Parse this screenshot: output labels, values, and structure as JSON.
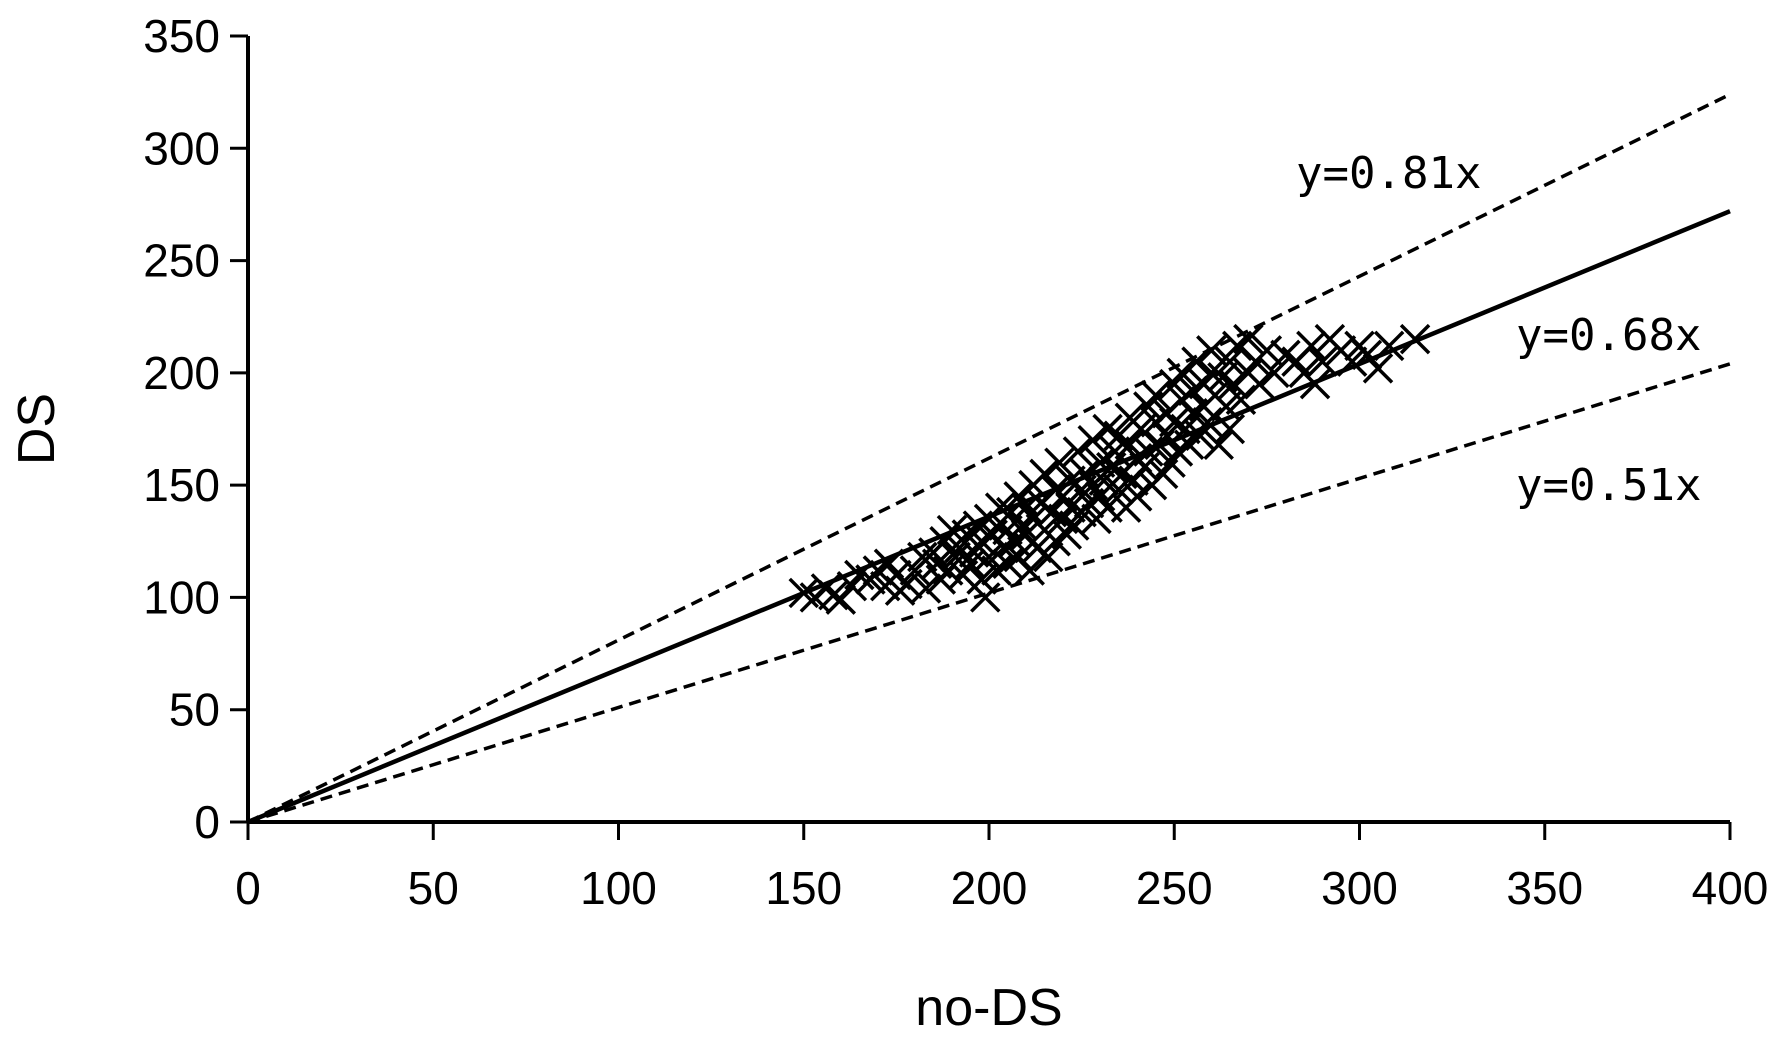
{
  "chart_data": {
    "type": "scatter",
    "title": "",
    "xlabel": "no-DS",
    "ylabel": "DS",
    "xlim": [
      0,
      400
    ],
    "ylim": [
      0,
      350
    ],
    "xticks": [
      "0",
      "50",
      "100",
      "150",
      "200",
      "250",
      "300",
      "350",
      "400"
    ],
    "yticks": [
      "0",
      "50",
      "100",
      "150",
      "200",
      "250",
      "300",
      "350"
    ],
    "grid": false,
    "legend": "none",
    "marker": "x",
    "lines": [
      {
        "slope": 0.81,
        "style": "dashed",
        "label": "y=0.81x"
      },
      {
        "slope": 0.68,
        "style": "solid",
        "label": "y=0.68x"
      },
      {
        "slope": 0.51,
        "style": "dashed",
        "label": "y=0.51x"
      }
    ],
    "points": [
      [
        150,
        102
      ],
      [
        153,
        100
      ],
      [
        156,
        104
      ],
      [
        158,
        101
      ],
      [
        160,
        99
      ],
      [
        163,
        105
      ],
      [
        165,
        110
      ],
      [
        168,
        108
      ],
      [
        170,
        112
      ],
      [
        172,
        105
      ],
      [
        173,
        115
      ],
      [
        175,
        110
      ],
      [
        176,
        103
      ],
      [
        178,
        106
      ],
      [
        180,
        112
      ],
      [
        182,
        118
      ],
      [
        183,
        104
      ],
      [
        185,
        120
      ],
      [
        186,
        115
      ],
      [
        187,
        108
      ],
      [
        188,
        125
      ],
      [
        189,
        112
      ],
      [
        190,
        130
      ],
      [
        191,
        118
      ],
      [
        192,
        122
      ],
      [
        193,
        110
      ],
      [
        194,
        128
      ],
      [
        195,
        115
      ],
      [
        196,
        120
      ],
      [
        197,
        132
      ],
      [
        198,
        108
      ],
      [
        198,
        125
      ],
      [
        199,
        100
      ],
      [
        200,
        118
      ],
      [
        200,
        135
      ],
      [
        201,
        128
      ],
      [
        202,
        112
      ],
      [
        203,
        140
      ],
      [
        204,
        122
      ],
      [
        205,
        130
      ],
      [
        205,
        115
      ],
      [
        206,
        138
      ],
      [
        207,
        125
      ],
      [
        208,
        145
      ],
      [
        208,
        118
      ],
      [
        209,
        132
      ],
      [
        210,
        128
      ],
      [
        210,
        140
      ],
      [
        211,
        112
      ],
      [
        212,
        150
      ],
      [
        212,
        135
      ],
      [
        213,
        122
      ],
      [
        214,
        142
      ],
      [
        215,
        130
      ],
      [
        215,
        155
      ],
      [
        216,
        118
      ],
      [
        217,
        138
      ],
      [
        218,
        148
      ],
      [
        218,
        125
      ],
      [
        219,
        160
      ],
      [
        220,
        135
      ],
      [
        220,
        145
      ],
      [
        221,
        128
      ],
      [
        222,
        152
      ],
      [
        222,
        140
      ],
      [
        223,
        132
      ],
      [
        224,
        165
      ],
      [
        225,
        148
      ],
      [
        225,
        138
      ],
      [
        226,
        155
      ],
      [
        227,
        142
      ],
      [
        228,
        170
      ],
      [
        228,
        150
      ],
      [
        229,
        135
      ],
      [
        230,
        160
      ],
      [
        230,
        145
      ],
      [
        231,
        152
      ],
      [
        232,
        175
      ],
      [
        232,
        140
      ],
      [
        233,
        158
      ],
      [
        234,
        165
      ],
      [
        235,
        148
      ],
      [
        235,
        172
      ],
      [
        236,
        155
      ],
      [
        237,
        140
      ],
      [
        238,
        168
      ],
      [
        238,
        180
      ],
      [
        239,
        152
      ],
      [
        240,
        162
      ],
      [
        240,
        145
      ],
      [
        241,
        175
      ],
      [
        242,
        158
      ],
      [
        243,
        185
      ],
      [
        243,
        165
      ],
      [
        244,
        150
      ],
      [
        245,
        178
      ],
      [
        245,
        190
      ],
      [
        246,
        168
      ],
      [
        247,
        155
      ],
      [
        248,
        182
      ],
      [
        248,
        172
      ],
      [
        249,
        160
      ],
      [
        250,
        195
      ],
      [
        250,
        178
      ],
      [
        251,
        165
      ],
      [
        252,
        188
      ],
      [
        252,
        200
      ],
      [
        253,
        175
      ],
      [
        254,
        168
      ],
      [
        255,
        192
      ],
      [
        255,
        182
      ],
      [
        256,
        205
      ],
      [
        257,
        172
      ],
      [
        258,
        195
      ],
      [
        258,
        185
      ],
      [
        259,
        178
      ],
      [
        260,
        200
      ],
      [
        260,
        210
      ],
      [
        261,
        190
      ],
      [
        262,
        168
      ],
      [
        263,
        198
      ],
      [
        264,
        185
      ],
      [
        265,
        205
      ],
      [
        265,
        175
      ],
      [
        266,
        195
      ],
      [
        267,
        212
      ],
      [
        268,
        188
      ],
      [
        270,
        200
      ],
      [
        270,
        215
      ],
      [
        272,
        205
      ],
      [
        273,
        195
      ],
      [
        275,
        210
      ],
      [
        277,
        200
      ],
      [
        280,
        208
      ],
      [
        283,
        205
      ],
      [
        285,
        200
      ],
      [
        287,
        212
      ],
      [
        288,
        195
      ],
      [
        290,
        205
      ],
      [
        292,
        215
      ],
      [
        295,
        210
      ],
      [
        298,
        205
      ],
      [
        300,
        212
      ],
      [
        302,
        208
      ],
      [
        305,
        202
      ],
      [
        308,
        212
      ],
      [
        315,
        215
      ]
    ]
  }
}
